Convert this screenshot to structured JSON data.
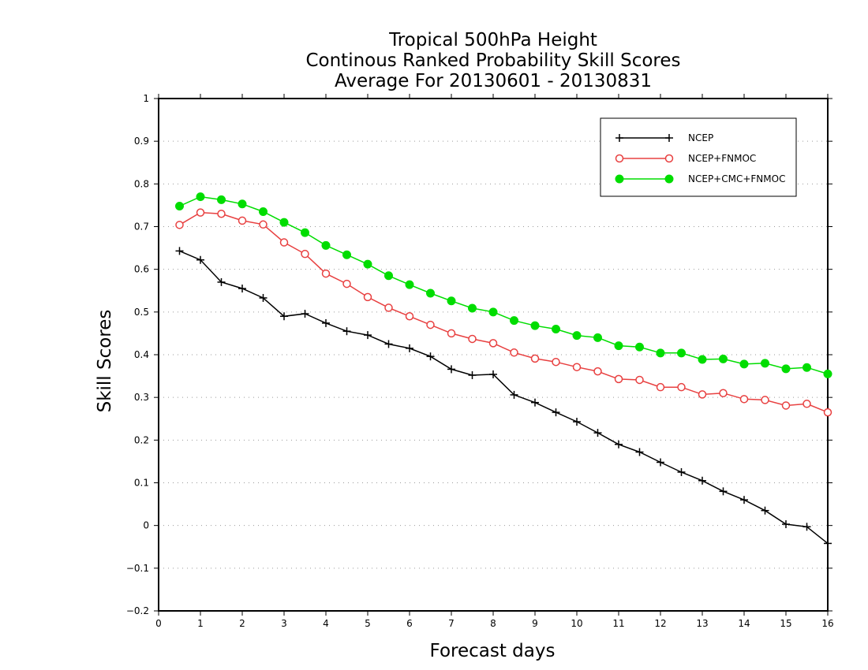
{
  "chart_data": {
    "type": "line",
    "title": [
      "Tropical 500hPa Height",
      "Continous Ranked Probability Skill Scores",
      "Average For 20130601 - 20130831"
    ],
    "xlabel": "Forecast days",
    "ylabel": "Skill Scores",
    "xlim": [
      0,
      16
    ],
    "ylim": [
      -0.2,
      1
    ],
    "xticks": [
      "0",
      "1",
      "2",
      "3",
      "4",
      "5",
      "6",
      "7",
      "8",
      "9",
      "10",
      "11",
      "12",
      "13",
      "14",
      "15",
      "16"
    ],
    "yticks": [
      "−0.2",
      "−0.1",
      "0",
      "0.1",
      "0.2",
      "0.3",
      "0.4",
      "0.5",
      "0.6",
      "0.7",
      "0.8",
      "0.9",
      "1"
    ],
    "grid": "horizontal dotted",
    "legend_position": "top-right",
    "x": [
      0.5,
      1,
      1.5,
      2,
      2.5,
      3,
      3.5,
      4,
      4.5,
      5,
      5.5,
      6,
      6.5,
      7,
      7.5,
      8,
      8.5,
      9,
      9.5,
      10,
      10.5,
      11,
      11.5,
      12,
      12.5,
      13,
      13.5,
      14,
      14.5,
      15,
      15.5,
      16
    ],
    "series": [
      {
        "name": "NCEP",
        "color": "#000000",
        "marker": "plus",
        "values": [
          0.643,
          0.622,
          0.57,
          0.555,
          0.533,
          0.49,
          0.496,
          0.474,
          0.455,
          0.446,
          0.425,
          0.415,
          0.396,
          0.366,
          0.352,
          0.354,
          0.306,
          0.288,
          0.265,
          0.243,
          0.217,
          0.19,
          0.172,
          0.148,
          0.125,
          0.105,
          0.08,
          0.06,
          0.035,
          0.003,
          -0.003,
          -0.042
        ]
      },
      {
        "name": "NCEP+FNMOC",
        "color": "#e84040",
        "marker": "open-circle",
        "values": [
          0.704,
          0.733,
          0.73,
          0.714,
          0.705,
          0.663,
          0.636,
          0.59,
          0.566,
          0.535,
          0.51,
          0.49,
          0.47,
          0.45,
          0.437,
          0.427,
          0.405,
          0.391,
          0.383,
          0.371,
          0.361,
          0.343,
          0.341,
          0.324,
          0.324,
          0.307,
          0.31,
          0.296,
          0.294,
          0.281,
          0.285,
          0.265
        ]
      },
      {
        "name": "NCEP+CMC+FNMOC",
        "color": "#00dd00",
        "marker": "filled-circle",
        "values": [
          0.748,
          0.77,
          0.763,
          0.753,
          0.735,
          0.71,
          0.686,
          0.656,
          0.634,
          0.612,
          0.585,
          0.564,
          0.544,
          0.526,
          0.509,
          0.5,
          0.48,
          0.468,
          0.46,
          0.445,
          0.44,
          0.421,
          0.418,
          0.404,
          0.404,
          0.389,
          0.39,
          0.378,
          0.38,
          0.367,
          0.37,
          0.355
        ]
      }
    ]
  }
}
